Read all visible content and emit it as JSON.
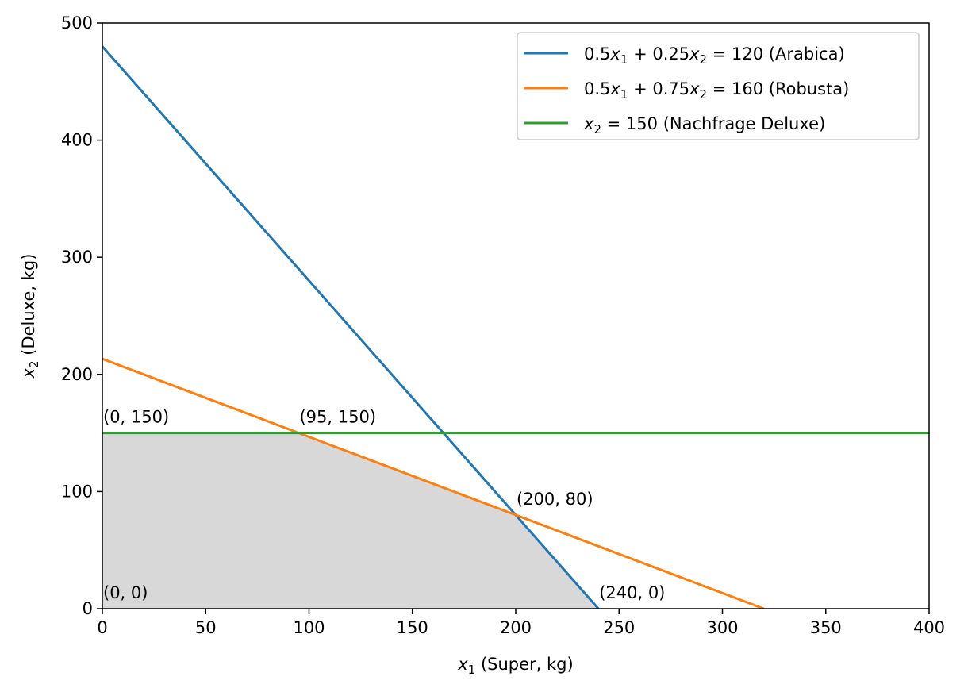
{
  "chart_data": {
    "type": "line",
    "xlim": [
      0,
      400
    ],
    "ylim": [
      0,
      500
    ],
    "x_ticks": [
      0,
      50,
      100,
      150,
      200,
      250,
      300,
      350,
      400
    ],
    "y_ticks": [
      0,
      100,
      200,
      300,
      400,
      500
    ],
    "xlabel": {
      "var": "x",
      "sub": "1",
      "rest": " (Super, kg)"
    },
    "ylabel": {
      "var": "x",
      "sub": "2",
      "rest": " (Deluxe, kg)"
    },
    "grid": false,
    "legend_position": "top-right",
    "series": [
      {
        "name": "0.5x1 + 0.25x2 = 120 (Arabica)",
        "legend_parts": [
          [
            "0.5",
            "n"
          ],
          [
            "x",
            "i"
          ],
          [
            "1",
            "s"
          ],
          [
            " + 0.25",
            "n"
          ],
          [
            "x",
            "i"
          ],
          [
            "2",
            "s"
          ],
          [
            " = 120 (Arabica)",
            "n"
          ]
        ],
        "color": "#1f77b4",
        "points": [
          [
            0,
            480
          ],
          [
            240,
            0
          ]
        ]
      },
      {
        "name": "0.5x1 + 0.75x2 = 160 (Robusta)",
        "legend_parts": [
          [
            "0.5",
            "n"
          ],
          [
            "x",
            "i"
          ],
          [
            "1",
            "s"
          ],
          [
            " + 0.75",
            "n"
          ],
          [
            "x",
            "i"
          ],
          [
            "2",
            "s"
          ],
          [
            " = 160 (Robusta)",
            "n"
          ]
        ],
        "color": "#ff7f0e",
        "points": [
          [
            0,
            213.33
          ],
          [
            320,
            0
          ]
        ]
      },
      {
        "name": "x2 = 150 (Nachfrage Deluxe)",
        "legend_parts": [
          [
            "x",
            "i"
          ],
          [
            "2",
            "s"
          ],
          [
            " = 150 (Nachfrage Deluxe)",
            "n"
          ]
        ],
        "color": "#2ca02c",
        "points": [
          [
            0,
            150
          ],
          [
            400,
            150
          ]
        ]
      }
    ],
    "feasible_region": {
      "color": "#d8d8d8",
      "vertices": [
        [
          0,
          0
        ],
        [
          0,
          150
        ],
        [
          95,
          150
        ],
        [
          200,
          80
        ],
        [
          240,
          0
        ]
      ]
    },
    "annotations": [
      {
        "x": 0,
        "y": 150,
        "text": "(0, 150)"
      },
      {
        "x": 95,
        "y": 150,
        "text": "(95, 150)"
      },
      {
        "x": 200,
        "y": 80,
        "text": "(200, 80)"
      },
      {
        "x": 240,
        "y": 0,
        "text": "(240, 0)"
      },
      {
        "x": 0,
        "y": 0,
        "text": "(0, 0)"
      }
    ]
  }
}
